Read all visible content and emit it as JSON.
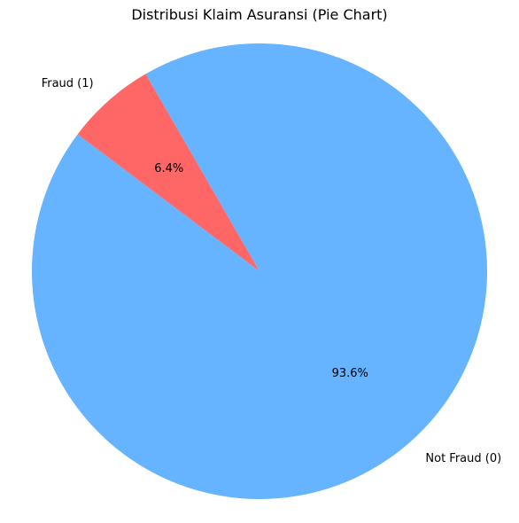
{
  "chart_data": {
    "type": "pie",
    "title": "Distribusi Klaim Asuransi (Pie Chart)",
    "start_angle_deg": 120,
    "counterclockwise": true,
    "slices": [
      {
        "label": "Fraud (1)",
        "percent": 6.4,
        "pct_label": "6.4%",
        "color": "#ff6666"
      },
      {
        "label": "Not Fraud (0)",
        "percent": 93.6,
        "pct_label": "93.6%",
        "color": "#66b3ff"
      }
    ]
  }
}
